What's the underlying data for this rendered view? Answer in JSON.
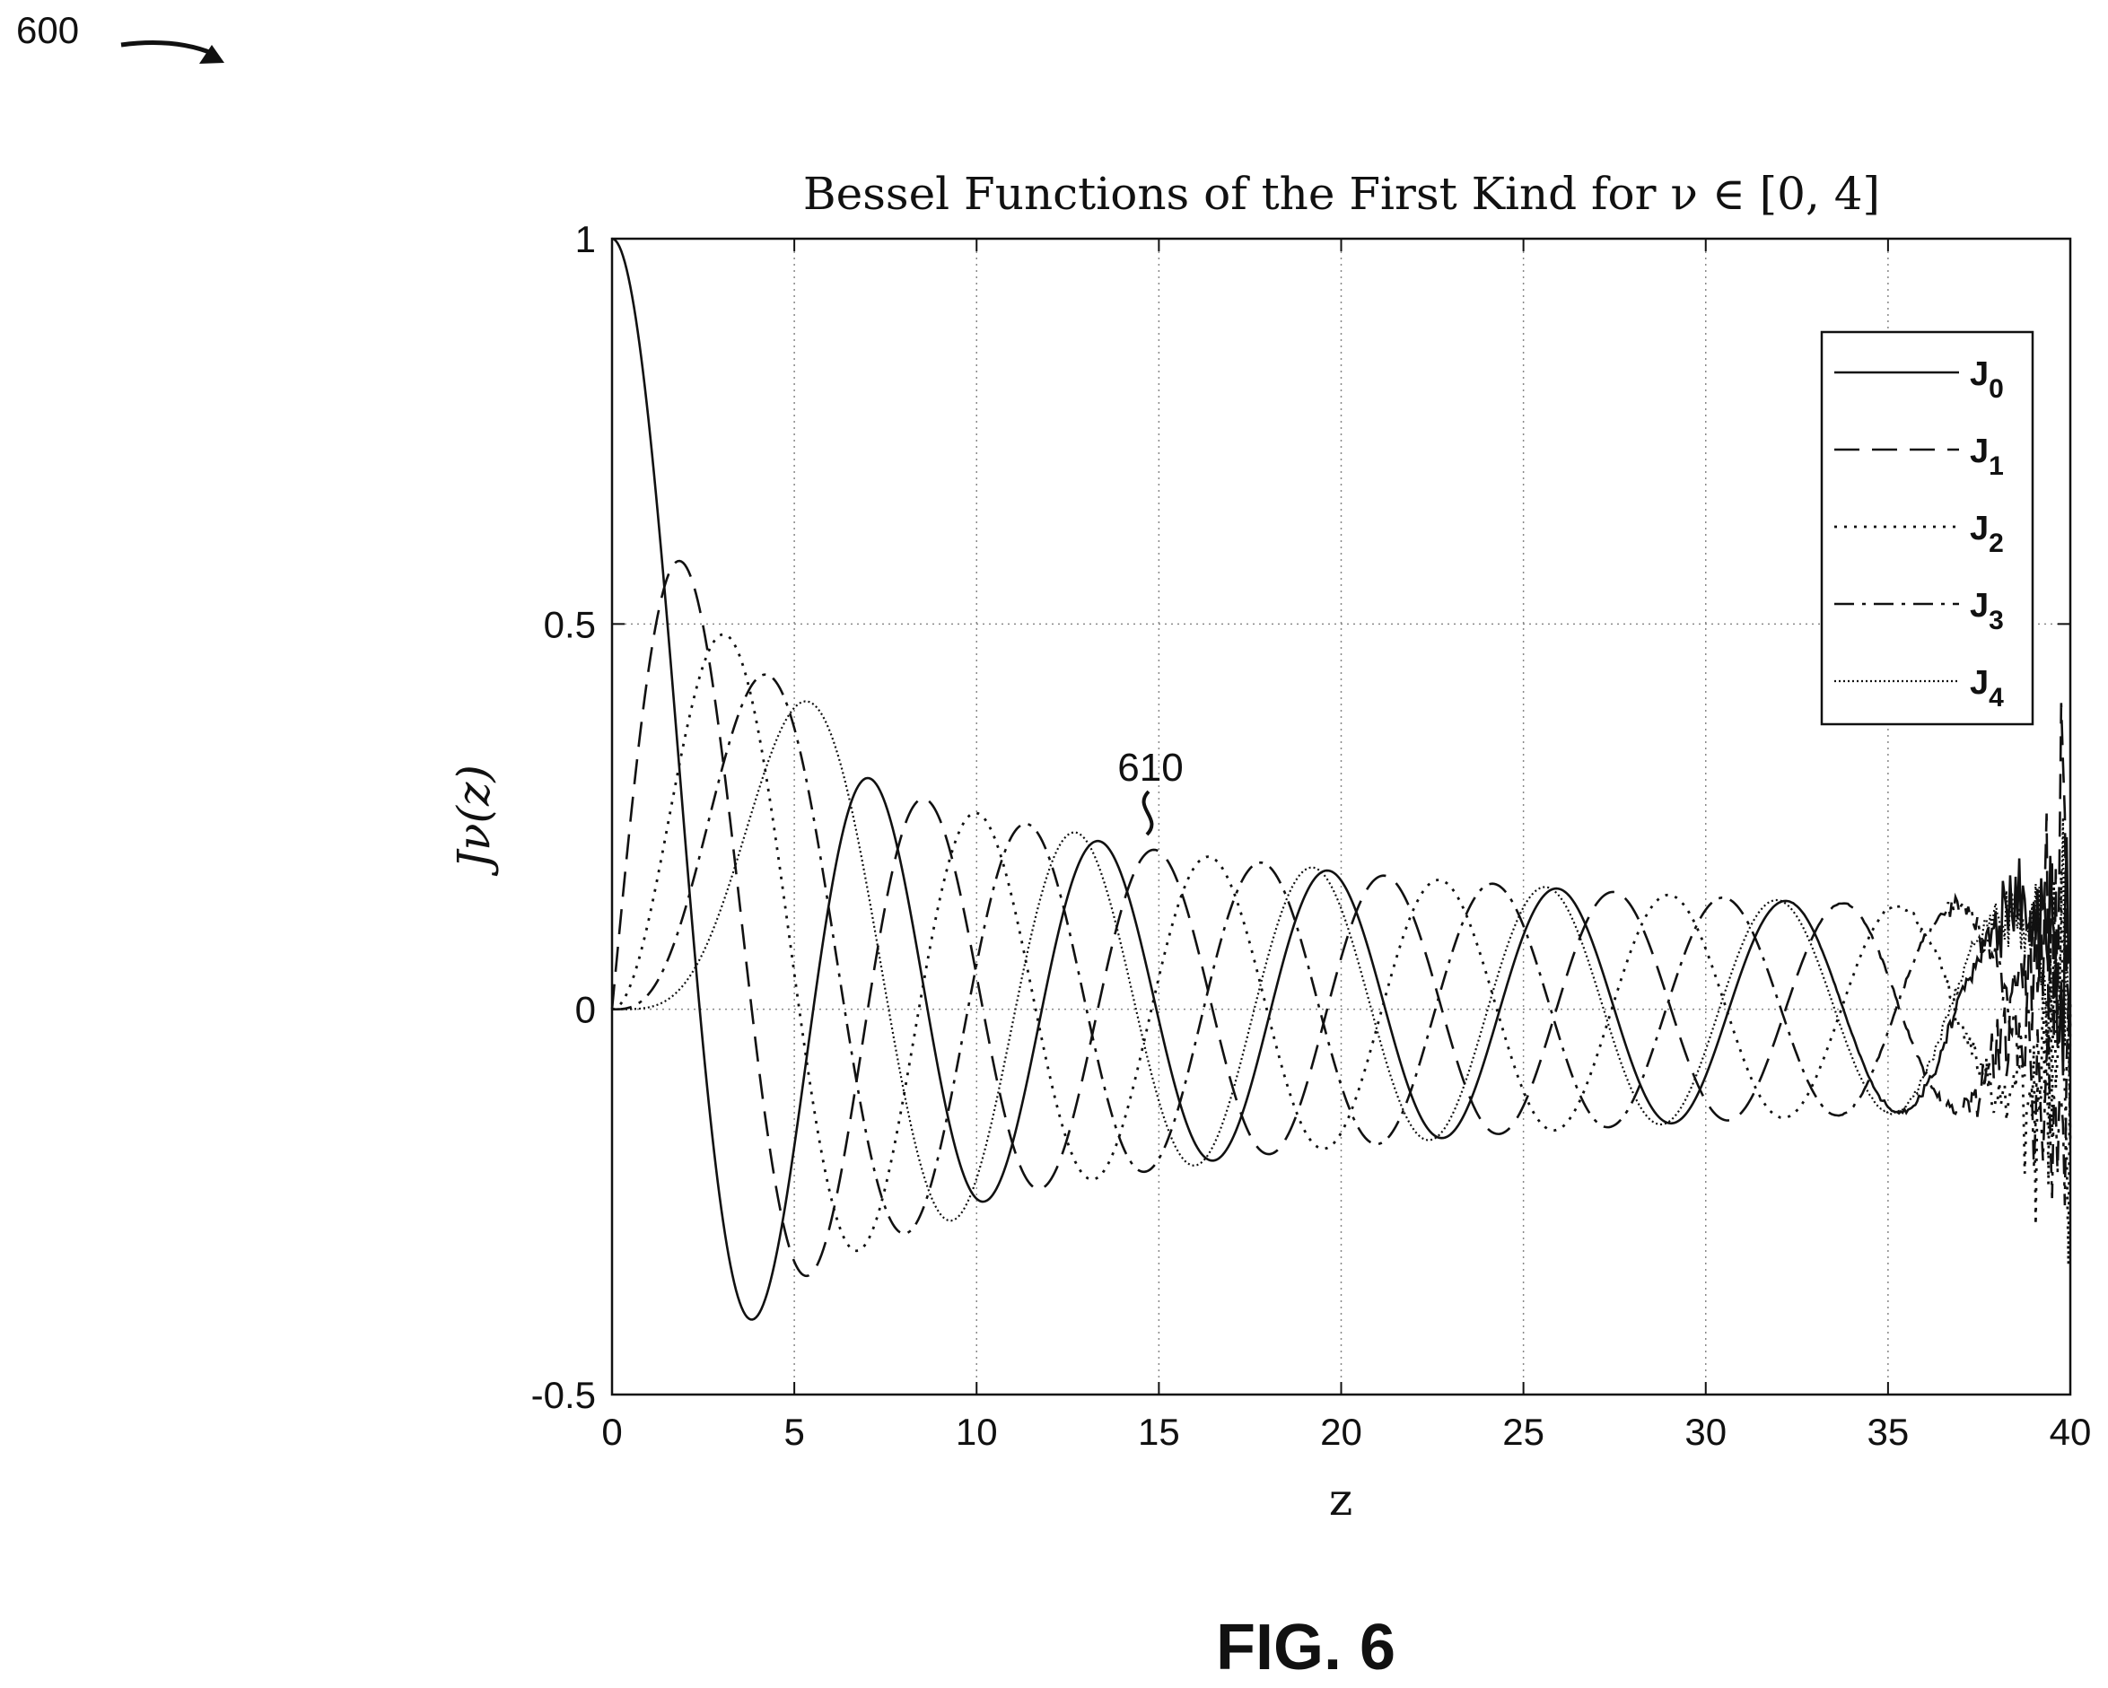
{
  "figure": {
    "ref_number": "600",
    "caption": "FIG. 6",
    "callout": "610"
  },
  "chart_data": {
    "type": "line",
    "title": "Bessel Functions of the First Kind for ν ∈ [0, 4]",
    "xlabel": "z",
    "ylabel": "J_ν(z)",
    "xlim": [
      0,
      40
    ],
    "ylim": [
      -0.5,
      1
    ],
    "x_ticks": [
      "0",
      "5",
      "10",
      "15",
      "20",
      "25",
      "30",
      "35",
      "40"
    ],
    "y_ticks": [
      "-0.5",
      "0",
      "0.5",
      "1"
    ],
    "grid": true,
    "legend_position": "top-right",
    "series": [
      {
        "name": "J0",
        "order": 0,
        "style": "solid"
      },
      {
        "name": "J1",
        "order": 1,
        "style": "dashed"
      },
      {
        "name": "J2",
        "order": 2,
        "style": "dotted"
      },
      {
        "name": "J3",
        "order": 3,
        "style": "dashdot"
      },
      {
        "name": "J4",
        "order": 4,
        "style": "dense-dotted"
      }
    ],
    "peaks": [
      {
        "series": "J0",
        "x": 0,
        "y": 1.0
      },
      {
        "series": "J0",
        "x": 3.83,
        "y": -0.403
      },
      {
        "series": "J1",
        "x": 1.84,
        "y": 0.582
      },
      {
        "series": "J2",
        "x": 3.05,
        "y": 0.486
      },
      {
        "series": "J3",
        "x": 4.2,
        "y": 0.434
      },
      {
        "series": "J4",
        "x": 5.32,
        "y": 0.4
      }
    ],
    "x_values": {
      "start": 0,
      "end": 40,
      "step": 0.05
    }
  }
}
